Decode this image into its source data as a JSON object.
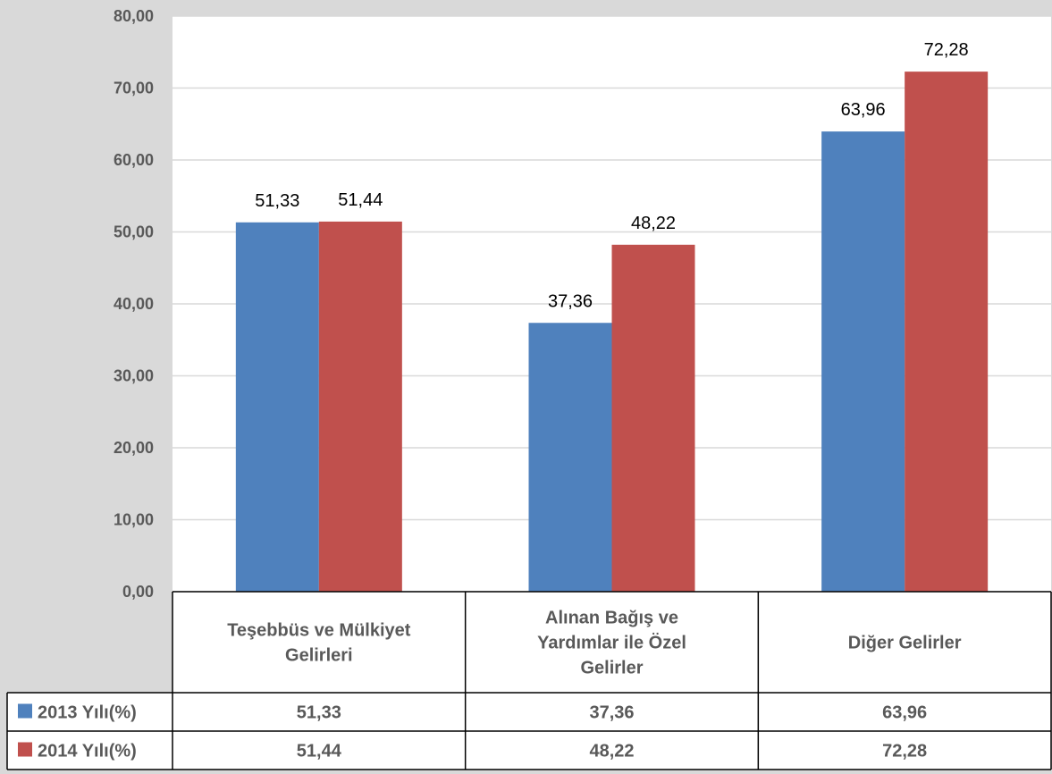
{
  "chart_data": {
    "type": "bar",
    "categories": [
      [
        "Teşebbüs ve Mülkiyet",
        "Gelirleri"
      ],
      [
        "Alınan Bağış ve",
        "Yardımlar ile Özel",
        "Gelirler"
      ],
      [
        "Diğer Gelirler"
      ]
    ],
    "series": [
      {
        "name": "2013 Yılı(%)",
        "color": "#4f81bd",
        "values": [
          51.33,
          37.36,
          63.96
        ],
        "labels": [
          "51,33",
          "37,36",
          "63,96"
        ]
      },
      {
        "name": "2014 Yılı(%)",
        "color": "#c0504d",
        "values": [
          51.44,
          48.22,
          72.28
        ],
        "labels": [
          "51,44",
          "48,22",
          "72,28"
        ]
      }
    ],
    "ylim": [
      0,
      80
    ],
    "yticks": [
      0,
      10,
      20,
      30,
      40,
      50,
      60,
      70,
      80
    ],
    "ytick_labels": [
      "0,00",
      "10,00",
      "20,00",
      "30,00",
      "40,00",
      "50,00",
      "60,00",
      "70,00",
      "80,00"
    ],
    "grid": true,
    "legend": "data-table",
    "data_table": true
  }
}
